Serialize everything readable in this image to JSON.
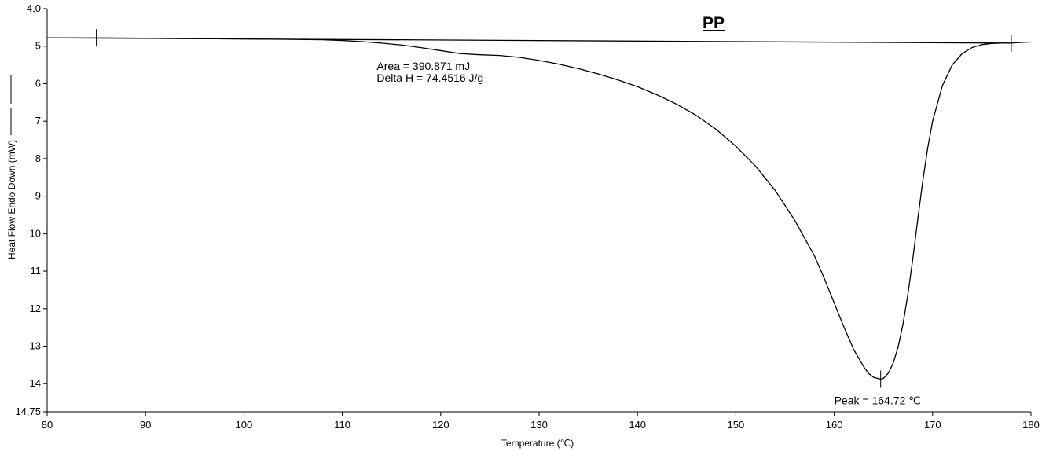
{
  "chart_data": {
    "type": "line",
    "title": "PP",
    "xlabel": "Temperature (℃)",
    "ylabel": "Heat Flow Endo Down (mW)",
    "xlim": [
      80,
      180
    ],
    "ylim": [
      4.0,
      14.75
    ],
    "y_inverted": true,
    "x_ticks": [
      80,
      90,
      100,
      110,
      120,
      130,
      140,
      150,
      160,
      170,
      180
    ],
    "x_tick_labels": [
      "80",
      "90",
      "100",
      "110",
      "120",
      "130",
      "140",
      "150",
      "160",
      "170",
      "180"
    ],
    "y_ticks": [
      4.0,
      5,
      6,
      7,
      8,
      9,
      10,
      11,
      12,
      13,
      14,
      14.75
    ],
    "y_tick_labels": [
      "4,0",
      "5",
      "6",
      "7",
      "8",
      "9",
      "10",
      "11",
      "12",
      "13",
      "14",
      "14,75"
    ],
    "grid": false,
    "series": [
      {
        "x": [
          80,
          85,
          90,
          95,
          100,
          105,
          108,
          110,
          112,
          114,
          116,
          118,
          120,
          122,
          124,
          126,
          128,
          130,
          132,
          134,
          136,
          138,
          140,
          142,
          144,
          146,
          148,
          150,
          152,
          154,
          156,
          158,
          159,
          160,
          161,
          162,
          163,
          163.5,
          164,
          164.4,
          164.72,
          165,
          165.5,
          166,
          166.5,
          167,
          167.5,
          168,
          168.5,
          169,
          169.5,
          170,
          171,
          172,
          173,
          174,
          175,
          176,
          177,
          178,
          179,
          180
        ],
        "y": [
          4.78,
          4.78,
          4.79,
          4.8,
          4.81,
          4.82,
          4.83,
          4.85,
          4.88,
          4.92,
          4.97,
          5.04,
          5.12,
          5.2,
          5.23,
          5.25,
          5.3,
          5.38,
          5.48,
          5.6,
          5.74,
          5.9,
          6.08,
          6.3,
          6.55,
          6.85,
          7.22,
          7.67,
          8.2,
          8.85,
          9.65,
          10.6,
          11.2,
          11.85,
          12.5,
          13.1,
          13.55,
          13.73,
          13.83,
          13.86,
          13.88,
          13.86,
          13.72,
          13.45,
          13.02,
          12.4,
          11.6,
          10.65,
          9.6,
          8.6,
          7.72,
          7.0,
          6.05,
          5.5,
          5.2,
          5.04,
          4.96,
          4.93,
          4.92,
          4.92,
          4.9,
          4.89
        ]
      },
      {
        "x": [
          80,
          178
        ],
        "y": [
          4.78,
          4.92
        ]
      }
    ],
    "markers": [
      {
        "x": 85,
        "y": 4.78
      },
      {
        "x": 178,
        "y": 4.92
      },
      {
        "x": 164.72,
        "y": 13.88
      }
    ],
    "annotations": [
      {
        "text": "Area = 390.871 mJ",
        "x": 113.5,
        "y": 5.63
      },
      {
        "text": "Delta H = 74.4516 J/g",
        "x": 113.5,
        "y": 5.95
      },
      {
        "text": "Peak = 164.72 ℃",
        "x": 160,
        "y": 14.55
      }
    ]
  }
}
